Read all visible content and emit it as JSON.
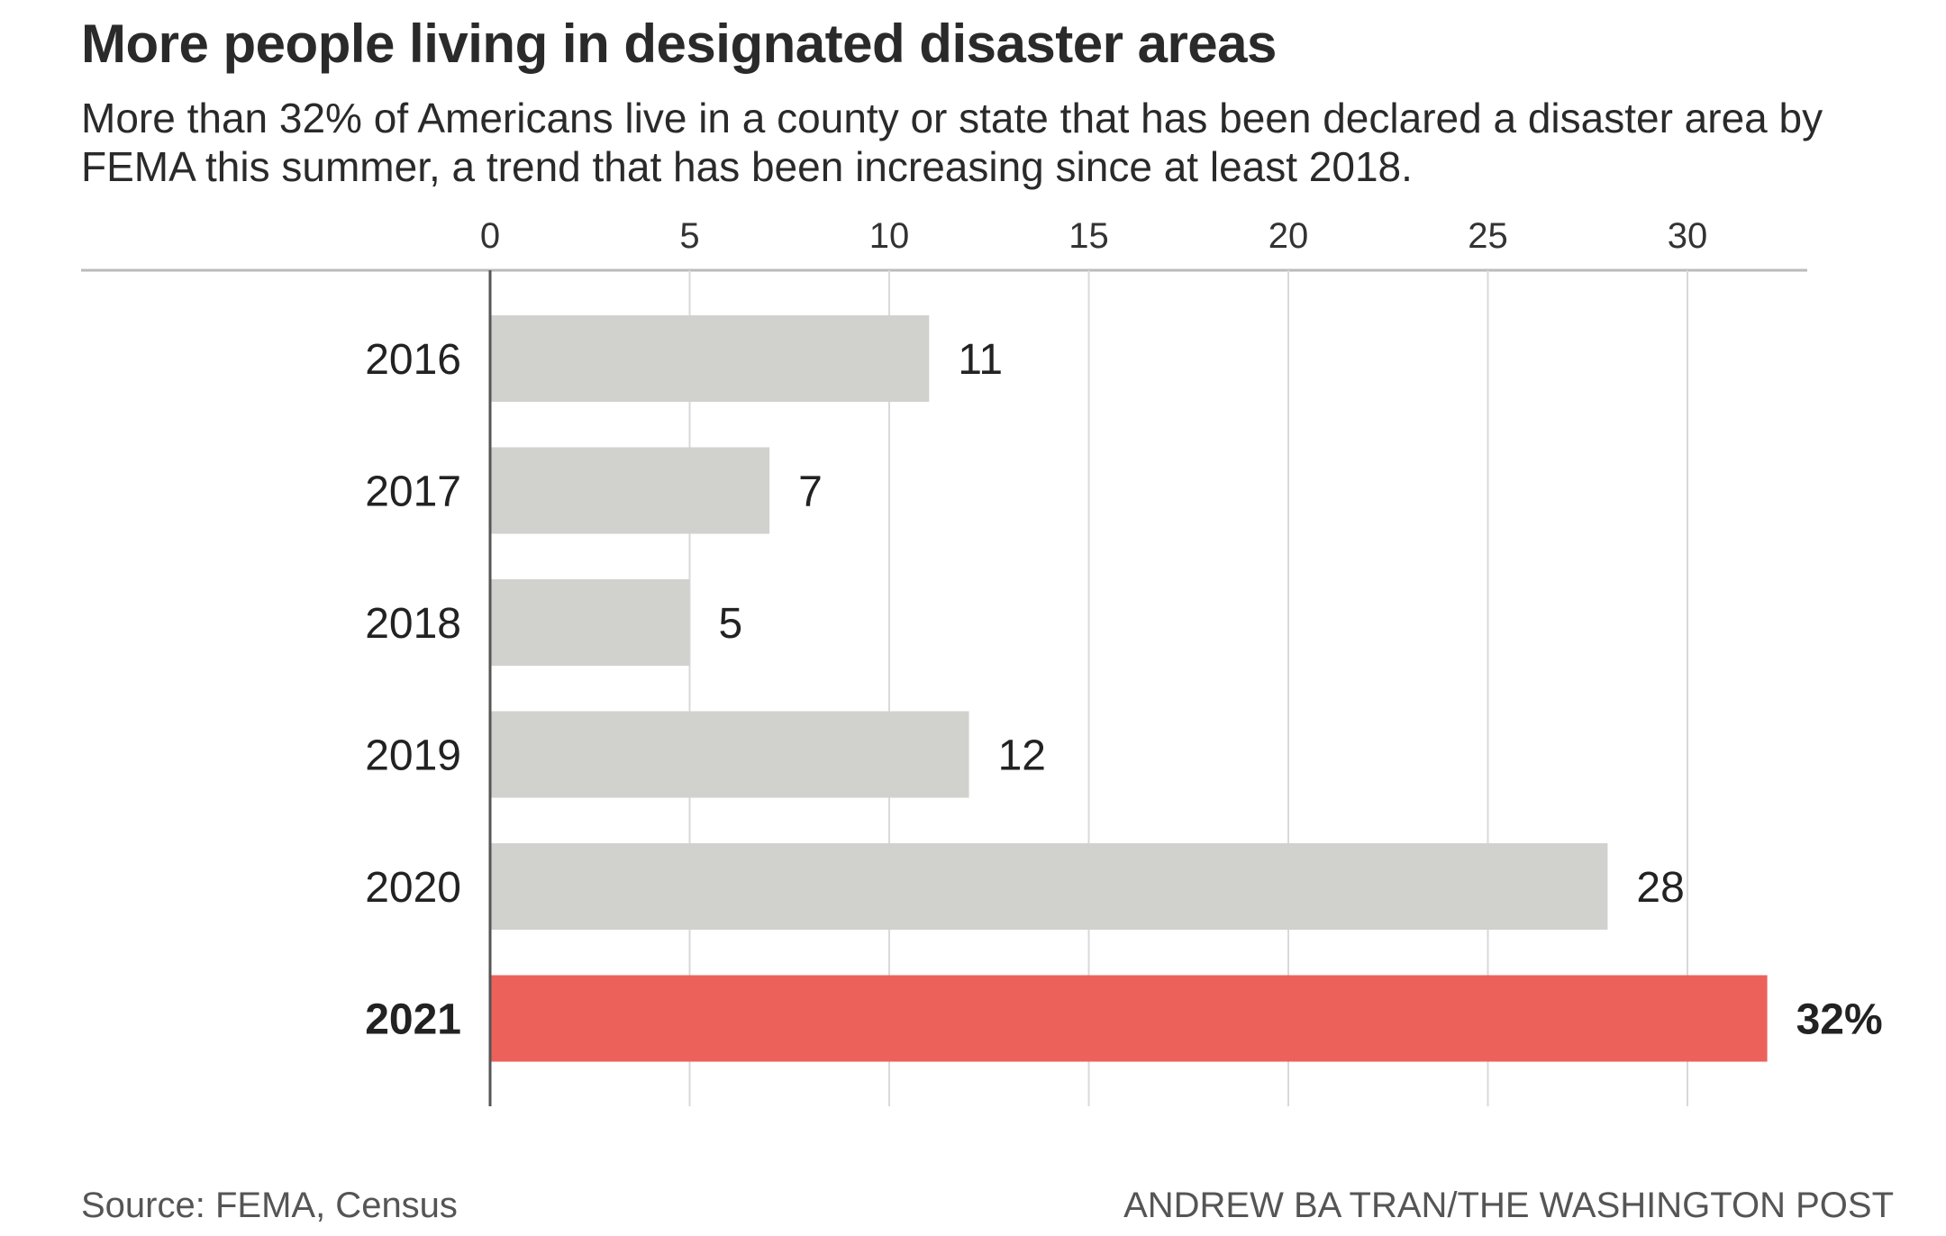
{
  "header": {
    "title": "More people living in designated disaster areas",
    "subtitle": "More than 32% of Americans live in a county or state that has been declared a disaster area by FEMA this summer, a trend that has been increasing since at least 2018."
  },
  "footer": {
    "source": "Source: FEMA, Census",
    "credit": "ANDREW BA TRAN/THE WASHINGTON POST"
  },
  "colors": {
    "bar": "#d1d2cd",
    "highlight": "#ec625a",
    "grid": "#d9d9d9",
    "axis": "#555555"
  },
  "chart_data": {
    "type": "bar",
    "orientation": "horizontal",
    "title": "More people living in designated disaster areas",
    "xlabel": "",
    "ylabel": "",
    "categories": [
      "2016",
      "2017",
      "2018",
      "2019",
      "2020",
      "2021"
    ],
    "values": [
      11,
      7,
      5,
      12,
      28,
      32
    ],
    "value_labels": [
      "11",
      "7",
      "5",
      "12",
      "28",
      "32%"
    ],
    "highlight": "2021",
    "xlim": [
      0,
      34
    ],
    "xticks": [
      0,
      5,
      10,
      15,
      20,
      25,
      30
    ],
    "xaxis_position": "top",
    "grid": true
  }
}
